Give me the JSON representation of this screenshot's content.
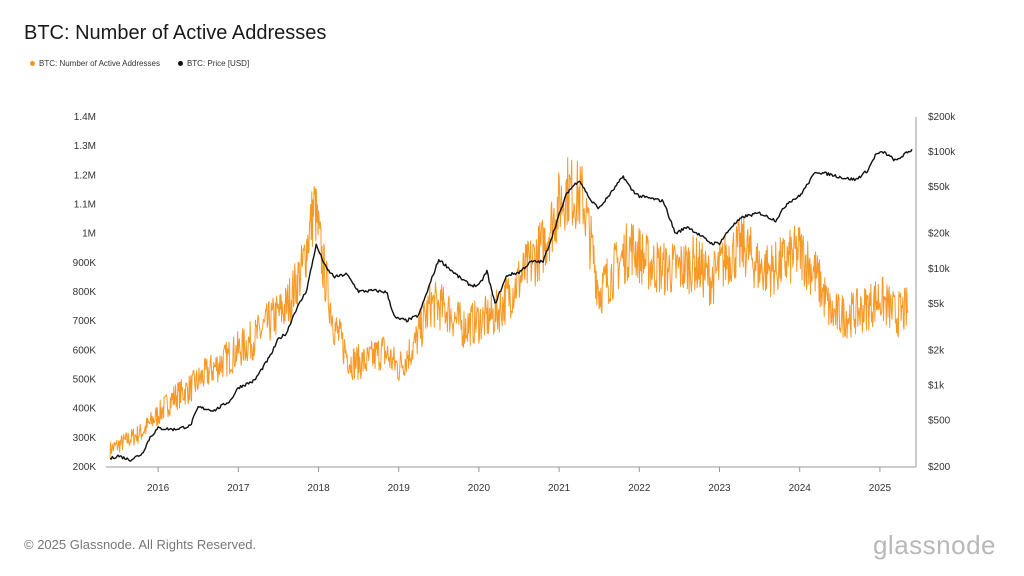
{
  "header": {
    "title": "BTC: Number of Active Addresses"
  },
  "legend": [
    {
      "label": "BTC: Number of Active Addresses",
      "color": "#f7931a"
    },
    {
      "label": "BTC: Price [USD]",
      "color": "#111111"
    }
  ],
  "footer": {
    "copyright": "© 2025 Glassnode. All Rights Reserved.",
    "brand": "glassnode"
  },
  "chart_data": {
    "type": "line",
    "title": "BTC: Number of Active Addresses",
    "x_ticks": [
      "2016",
      "2017",
      "2018",
      "2019",
      "2020",
      "2021",
      "2022",
      "2023",
      "2024",
      "2025"
    ],
    "xlim": [
      2015.35,
      2025.45
    ],
    "y_left": {
      "ticks": [
        "200K",
        "300K",
        "400K",
        "500K",
        "600K",
        "700K",
        "800K",
        "900K",
        "1M",
        "1.1M",
        "1.2M",
        "1.3M",
        "1.4M"
      ],
      "ylim": [
        200000,
        1400000
      ]
    },
    "y_right": {
      "scale": "log",
      "ticks": [
        {
          "label": "$200",
          "value": 200
        },
        {
          "label": "$500",
          "value": 500
        },
        {
          "label": "$1k",
          "value": 1000
        },
        {
          "label": "$2k",
          "value": 2000
        },
        {
          "label": "$5k",
          "value": 5000
        },
        {
          "label": "$10k",
          "value": 10000
        },
        {
          "label": "$20k",
          "value": 20000
        },
        {
          "label": "$50k",
          "value": 50000
        },
        {
          "label": "$100k",
          "value": 100000
        },
        {
          "label": "$200k",
          "value": 200000
        }
      ],
      "ylim": [
        200,
        200000
      ]
    },
    "grid": false,
    "legend_position": "top-left",
    "series": [
      {
        "name": "BTC: Number of Active Addresses",
        "axis": "left",
        "color": "#f7931a",
        "points": [
          [
            2015.4,
            260000
          ],
          [
            2015.6,
            290000
          ],
          [
            2015.8,
            320000
          ],
          [
            2016.0,
            380000
          ],
          [
            2016.2,
            440000
          ],
          [
            2016.4,
            470000
          ],
          [
            2016.6,
            520000
          ],
          [
            2016.8,
            560000
          ],
          [
            2017.0,
            600000
          ],
          [
            2017.2,
            640000
          ],
          [
            2017.4,
            700000
          ],
          [
            2017.6,
            750000
          ],
          [
            2017.8,
            880000
          ],
          [
            2017.95,
            1100000
          ],
          [
            2018.05,
            900000
          ],
          [
            2018.2,
            680000
          ],
          [
            2018.4,
            560000
          ],
          [
            2018.6,
            560000
          ],
          [
            2018.8,
            600000
          ],
          [
            2019.0,
            540000
          ],
          [
            2019.2,
            620000
          ],
          [
            2019.4,
            760000
          ],
          [
            2019.6,
            740000
          ],
          [
            2019.8,
            680000
          ],
          [
            2020.0,
            700000
          ],
          [
            2020.2,
            720000
          ],
          [
            2020.4,
            800000
          ],
          [
            2020.6,
            880000
          ],
          [
            2020.8,
            960000
          ],
          [
            2021.0,
            1100000
          ],
          [
            2021.1,
            1150000
          ],
          [
            2021.3,
            1120000
          ],
          [
            2021.5,
            800000
          ],
          [
            2021.7,
            880000
          ],
          [
            2021.9,
            960000
          ],
          [
            2022.1,
            900000
          ],
          [
            2022.3,
            880000
          ],
          [
            2022.5,
            880000
          ],
          [
            2022.7,
            900000
          ],
          [
            2022.9,
            840000
          ],
          [
            2023.1,
            920000
          ],
          [
            2023.3,
            960000
          ],
          [
            2023.5,
            880000
          ],
          [
            2023.7,
            880000
          ],
          [
            2023.9,
            920000
          ],
          [
            2024.0,
            940000
          ],
          [
            2024.2,
            860000
          ],
          [
            2024.4,
            720000
          ],
          [
            2024.6,
            720000
          ],
          [
            2024.8,
            740000
          ],
          [
            2025.0,
            780000
          ],
          [
            2025.2,
            720000
          ],
          [
            2025.35,
            740000
          ]
        ]
      },
      {
        "name": "BTC: Price [USD]",
        "axis": "right",
        "color": "#111111",
        "points": [
          [
            2015.4,
            235
          ],
          [
            2015.5,
            250
          ],
          [
            2015.65,
            230
          ],
          [
            2015.8,
            260
          ],
          [
            2015.9,
            360
          ],
          [
            2016.0,
            430
          ],
          [
            2016.2,
            420
          ],
          [
            2016.4,
            450
          ],
          [
            2016.5,
            650
          ],
          [
            2016.7,
            610
          ],
          [
            2016.9,
            740
          ],
          [
            2017.0,
            960
          ],
          [
            2017.2,
            1100
          ],
          [
            2017.4,
            1800
          ],
          [
            2017.5,
            2500
          ],
          [
            2017.6,
            2800
          ],
          [
            2017.7,
            4200
          ],
          [
            2017.85,
            6500
          ],
          [
            2017.97,
            16000
          ],
          [
            2018.1,
            10000
          ],
          [
            2018.2,
            8500
          ],
          [
            2018.35,
            9000
          ],
          [
            2018.5,
            6400
          ],
          [
            2018.7,
            6500
          ],
          [
            2018.85,
            6300
          ],
          [
            2018.95,
            3800
          ],
          [
            2019.1,
            3600
          ],
          [
            2019.25,
            4000
          ],
          [
            2019.4,
            7800
          ],
          [
            2019.5,
            12000
          ],
          [
            2019.6,
            10500
          ],
          [
            2019.75,
            8500
          ],
          [
            2019.9,
            7200
          ],
          [
            2020.0,
            7200
          ],
          [
            2020.1,
            9500
          ],
          [
            2020.2,
            5000
          ],
          [
            2020.35,
            8800
          ],
          [
            2020.5,
            9300
          ],
          [
            2020.65,
            11500
          ],
          [
            2020.8,
            11500
          ],
          [
            2020.9,
            18000
          ],
          [
            2021.0,
            29000
          ],
          [
            2021.1,
            45000
          ],
          [
            2021.25,
            58000
          ],
          [
            2021.4,
            38000
          ],
          [
            2021.5,
            33000
          ],
          [
            2021.65,
            45000
          ],
          [
            2021.8,
            62000
          ],
          [
            2021.9,
            48000
          ],
          [
            2022.0,
            42000
          ],
          [
            2022.15,
            40000
          ],
          [
            2022.3,
            38000
          ],
          [
            2022.45,
            20000
          ],
          [
            2022.6,
            23000
          ],
          [
            2022.75,
            19500
          ],
          [
            2022.9,
            16500
          ],
          [
            2023.0,
            16600
          ],
          [
            2023.15,
            23000
          ],
          [
            2023.3,
            28000
          ],
          [
            2023.5,
            30000
          ],
          [
            2023.7,
            26000
          ],
          [
            2023.85,
            37000
          ],
          [
            2024.0,
            42000
          ],
          [
            2024.2,
            68000
          ],
          [
            2024.4,
            64000
          ],
          [
            2024.55,
            60000
          ],
          [
            2024.7,
            58000
          ],
          [
            2024.85,
            70000
          ],
          [
            2024.95,
            96000
          ],
          [
            2025.05,
            100000
          ],
          [
            2025.2,
            84000
          ],
          [
            2025.3,
            95000
          ],
          [
            2025.4,
            105000
          ]
        ]
      }
    ]
  }
}
